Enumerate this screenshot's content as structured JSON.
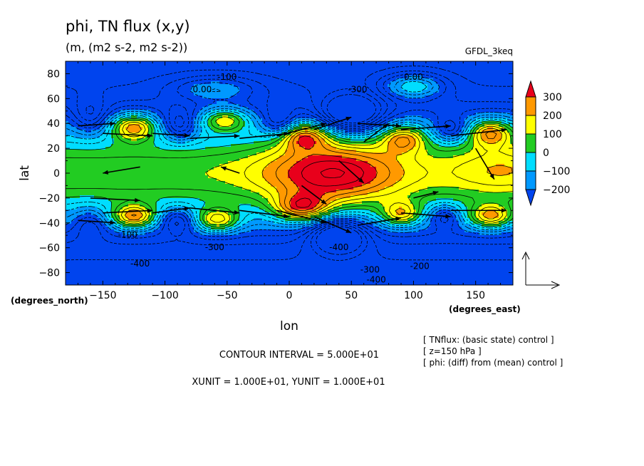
{
  "chart_data": {
    "type": "heatmap",
    "title": "phi, TN flux (x,y)",
    "subtitle": "(m, (m2 s-2, m2 s-2))",
    "model": "GFDL_3keq",
    "xlabel": "lon",
    "ylabel": "lat",
    "x_unit_label": "(degrees_east)",
    "y_unit_label": "(degrees_north)",
    "xlim": [
      -180,
      180
    ],
    "ylim": [
      -90,
      90
    ],
    "x_ticks": [
      -150,
      -100,
      -50,
      0,
      50,
      100,
      150
    ],
    "y_ticks": [
      80,
      60,
      40,
      20,
      0,
      -20,
      -40,
      -60,
      -80
    ],
    "colorbar": {
      "levels": [
        300,
        200,
        100,
        0,
        -100,
        -200
      ],
      "colors": [
        "#e8001b",
        "#ff9900",
        "#ffff00",
        "#22cc22",
        "#00ddff",
        "#0099ff",
        "#0044ee"
      ]
    },
    "contour_labels": [
      {
        "text": "-100",
        "lon": -50,
        "lat": 75
      },
      {
        "text": "0.00",
        "lon": -70,
        "lat": 65
      },
      {
        "text": "0.00",
        "lon": 100,
        "lat": 75
      },
      {
        "text": "-300",
        "lon": 55,
        "lat": 65
      },
      {
        "text": "-100",
        "lon": -130,
        "lat": -52
      },
      {
        "text": "-300",
        "lon": -60,
        "lat": -62
      },
      {
        "text": "-400",
        "lon": -120,
        "lat": -75
      },
      {
        "text": "-400",
        "lon": 40,
        "lat": -62
      },
      {
        "text": "-300",
        "lon": 65,
        "lat": -80
      },
      {
        "text": "-200",
        "lon": 105,
        "lat": -77
      },
      {
        "text": "-400",
        "lon": 70,
        "lat": -88
      }
    ],
    "reference_vector": {
      "xunit": "1.000E+01",
      "yunit": "1.000E+01"
    },
    "contour_interval": "5.000E+01"
  },
  "info": {
    "contour_interval_text": "CONTOUR INTERVAL = 5.000E+01",
    "units_text": "XUNIT = 1.000E+01, YUNIT = 1.000E+01",
    "meta_lines": [
      "[ TNflux: (basic state) control ]",
      "[ z=150 hPa ]",
      "[ phi: (diff) from (mean) control ]"
    ]
  }
}
